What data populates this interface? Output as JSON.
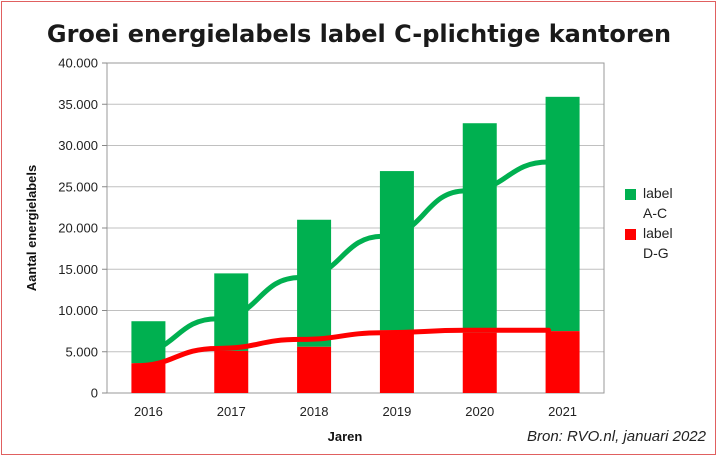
{
  "chart_data": {
    "type": "bar",
    "title": "Groei energielabels label C-plichtige kantoren",
    "xlabel": "Jaren",
    "ylabel": "Aantal energielabels",
    "categories": [
      "2016",
      "2017",
      "2018",
      "2019",
      "2020",
      "2021"
    ],
    "ylim": [
      0,
      40000
    ],
    "yticks": [
      0,
      5000,
      10000,
      15000,
      20000,
      25000,
      30000,
      35000,
      40000
    ],
    "ytick_labels": [
      "0",
      "5.000",
      "10.000",
      "15.000",
      "20.000",
      "25.000",
      "30.000",
      "35.000",
      "40.000"
    ],
    "stacked": true,
    "grid": true,
    "legend_position": "right",
    "series": [
      {
        "name_lines": [
          "label",
          "A-C"
        ],
        "color": "#00b050",
        "values": [
          5100,
          9400,
          15400,
          19300,
          25400,
          28400
        ],
        "trendline": [
          4800,
          9000,
          14000,
          19000,
          24500,
          28000
        ]
      },
      {
        "name_lines": [
          "label",
          "D-G"
        ],
        "color": "#ff0000",
        "values": [
          3600,
          5100,
          5600,
          7600,
          7300,
          7500
        ],
        "trendline": [
          3300,
          5400,
          6500,
          7300,
          7600,
          7600
        ]
      }
    ],
    "source": "Bron: RVO.nl, januari 2022",
    "colors": {
      "grid": "#c0c0c0",
      "plot_border": "#999999",
      "frame_border": "#e06060"
    }
  }
}
